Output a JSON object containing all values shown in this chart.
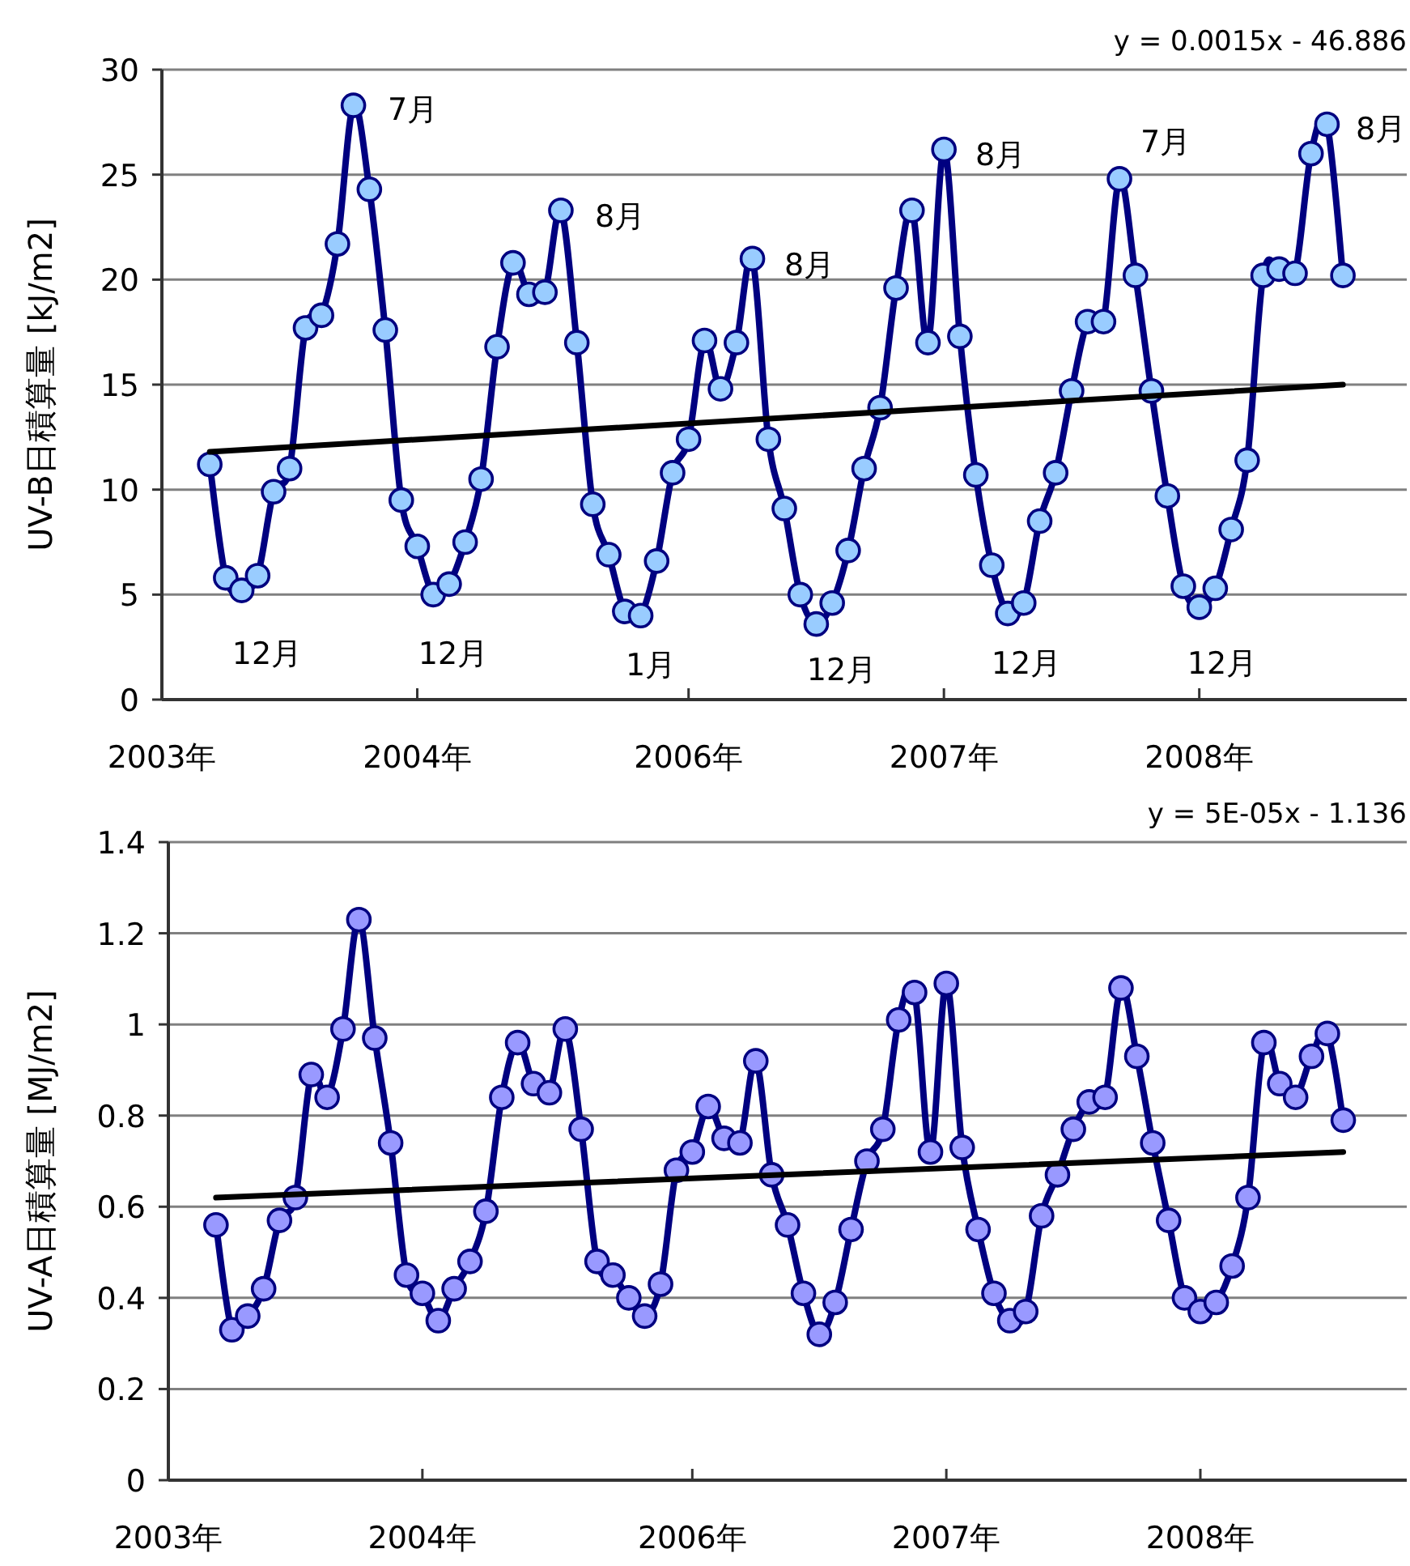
{
  "chart_data": [
    {
      "type": "line",
      "ylabel": "UV-B日積算量 [kJ/m2]",
      "grid": "y",
      "marker": "circle",
      "line_style": "solid",
      "ylim": [
        0,
        30
      ],
      "yticks": [
        0,
        5,
        10,
        15,
        20,
        25,
        30
      ],
      "categories": [
        "2003年",
        null,
        null,
        null,
        null,
        null,
        null,
        null,
        null,
        null,
        null,
        null,
        null,
        null,
        null,
        null,
        "2004年",
        null,
        null,
        null,
        null,
        null,
        null,
        null,
        null,
        null,
        null,
        null,
        null,
        null,
        null,
        null,
        null,
        "2006年",
        null,
        null,
        null,
        null,
        null,
        null,
        null,
        null,
        null,
        null,
        null,
        null,
        null,
        null,
        null,
        "2007年",
        null,
        null,
        null,
        null,
        null,
        null,
        null,
        null,
        null,
        null,
        null,
        null,
        null,
        null,
        null,
        "2008年",
        null,
        null,
        null,
        null,
        null,
        null,
        null,
        null,
        null,
        null,
        null,
        null,
        null
      ],
      "series": [
        {
          "color": "#000080",
          "values": [
            null,
            null,
            null,
            11.2,
            5.8,
            5.2,
            5.9,
            9.9,
            11.0,
            17.7,
            18.3,
            21.7,
            28.3,
            24.3,
            17.6,
            9.5,
            7.3,
            5.0,
            5.5,
            7.5,
            10.5,
            16.8,
            20.8,
            19.3,
            19.4,
            23.3,
            17.0,
            9.3,
            6.9,
            4.2,
            4.0,
            6.6,
            10.8,
            12.4,
            17.1,
            14.8,
            17.0,
            21.0,
            12.4,
            9.1,
            5.0,
            3.6,
            4.6,
            7.1,
            11.0,
            13.9,
            19.6,
            23.3,
            17.0,
            26.2,
            17.3,
            10.7,
            6.4,
            4.1,
            4.6,
            8.5,
            10.8,
            14.7,
            18.0,
            18.0,
            24.8,
            20.2,
            14.7,
            9.7,
            5.4,
            4.4,
            5.3,
            8.1,
            11.4,
            20.2,
            20.5,
            20.3,
            26.0,
            27.4,
            20.2,
            null,
            null,
            null,
            null
          ]
        },
        {
          "type": "line",
          "color": "#000000",
          "marker": "none",
          "values": [
            null,
            null,
            null,
            11.8,
            null,
            null,
            null,
            null,
            null,
            null,
            null,
            null,
            null,
            null,
            null,
            null,
            null,
            null,
            null,
            null,
            null,
            null,
            null,
            null,
            null,
            null,
            null,
            null,
            null,
            null,
            null,
            null,
            null,
            null,
            null,
            null,
            null,
            null,
            null,
            null,
            null,
            null,
            null,
            null,
            null,
            null,
            null,
            null,
            null,
            null,
            null,
            null,
            null,
            null,
            null,
            null,
            null,
            null,
            null,
            null,
            null,
            null,
            null,
            null,
            null,
            null,
            null,
            null,
            null,
            null,
            null,
            null,
            null,
            null,
            15.0,
            null,
            null,
            null,
            null
          ]
        }
      ],
      "annotations": [
        "y = 0.0015x - 46.886",
        "12月",
        "7月",
        "12月",
        "8月",
        "1月",
        "8月",
        "12月",
        "8月",
        "12月",
        "7月",
        "12月",
        "8月"
      ]
    },
    {
      "type": "line",
      "ylabel": "UV-A日積算量 [MJ/m2]",
      "grid": "y",
      "marker": "circle",
      "line_style": "solid",
      "ylim": [
        0,
        1.4
      ],
      "yticks": [
        0,
        0.2,
        0.4,
        0.6,
        0.8,
        1,
        1.2,
        1.4
      ],
      "categories": [
        "2003年",
        null,
        null,
        null,
        null,
        null,
        null,
        null,
        null,
        null,
        null,
        null,
        null,
        null,
        null,
        null,
        "2004年",
        null,
        null,
        null,
        null,
        null,
        null,
        null,
        null,
        null,
        null,
        null,
        null,
        null,
        null,
        null,
        null,
        "2006年",
        null,
        null,
        null,
        null,
        null,
        null,
        null,
        null,
        null,
        null,
        null,
        null,
        null,
        null,
        null,
        "2007年",
        null,
        null,
        null,
        null,
        null,
        null,
        null,
        null,
        null,
        null,
        null,
        null,
        null,
        null,
        null,
        "2008年",
        null,
        null,
        null,
        null,
        null,
        null,
        null,
        null,
        null,
        null,
        null,
        null,
        null
      ],
      "series": [
        {
          "color": "#000080",
          "values": [
            null,
            null,
            null,
            0.56,
            0.33,
            0.36,
            0.42,
            0.57,
            0.62,
            0.89,
            0.84,
            0.99,
            1.23,
            0.97,
            0.74,
            0.45,
            0.41,
            0.35,
            0.42,
            0.48,
            0.59,
            0.84,
            0.96,
            0.87,
            0.85,
            0.99,
            0.77,
            0.48,
            0.45,
            0.4,
            0.36,
            0.43,
            0.68,
            0.72,
            0.82,
            0.75,
            0.74,
            0.92,
            0.67,
            0.56,
            0.41,
            0.32,
            0.39,
            0.55,
            0.7,
            0.77,
            1.01,
            1.07,
            0.72,
            1.09,
            0.73,
            0.55,
            0.41,
            0.35,
            0.37,
            0.58,
            0.67,
            0.77,
            0.83,
            0.84,
            1.08,
            0.93,
            0.74,
            0.57,
            0.4,
            0.37,
            0.39,
            0.47,
            0.62,
            0.96,
            0.87,
            0.84,
            0.93,
            0.98,
            0.79,
            null,
            null,
            null,
            null
          ]
        },
        {
          "type": "line",
          "color": "#000000",
          "marker": "none",
          "values": [
            null,
            null,
            null,
            0.62,
            null,
            null,
            null,
            null,
            null,
            null,
            null,
            null,
            null,
            null,
            null,
            null,
            null,
            null,
            null,
            null,
            null,
            null,
            null,
            null,
            null,
            null,
            null,
            null,
            null,
            null,
            null,
            null,
            null,
            null,
            null,
            null,
            null,
            null,
            null,
            null,
            null,
            null,
            null,
            null,
            null,
            null,
            null,
            null,
            null,
            null,
            null,
            null,
            null,
            null,
            null,
            null,
            null,
            null,
            null,
            null,
            null,
            null,
            null,
            null,
            null,
            null,
            null,
            null,
            null,
            null,
            null,
            null,
            null,
            null,
            0.72,
            null,
            null,
            null,
            null
          ]
        }
      ],
      "annotations": [
        "y = 5E-05x - 1.136"
      ]
    }
  ]
}
